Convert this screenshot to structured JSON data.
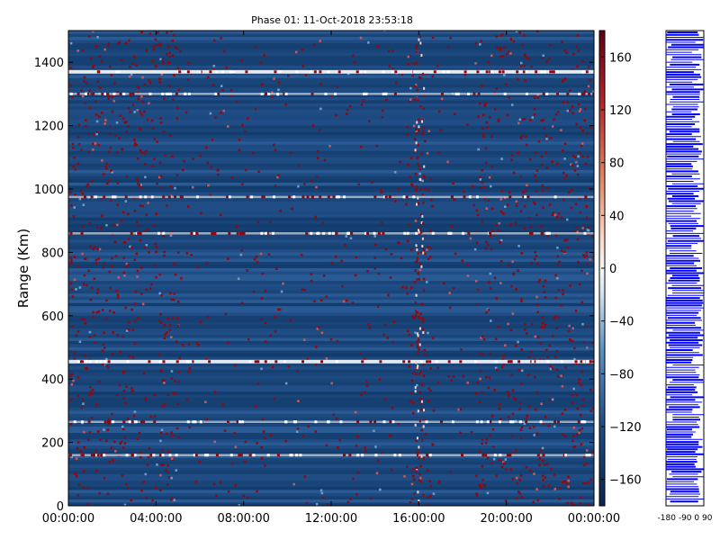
{
  "chart_data": [
    {
      "type": "heatmap",
      "title": "Phase 01: 11-Oct-2018 23:53:18",
      "ylabel": "Range (Km)",
      "xlabel": "",
      "x_ticks": [
        "00:00:00",
        "04:00:00",
        "08:00:00",
        "12:00:00",
        "16:00:00",
        "20:00:00",
        "00:00:00"
      ],
      "x_range_hours": [
        0,
        24
      ],
      "y_ticks": [
        0,
        200,
        400,
        600,
        800,
        1000,
        1200,
        1400
      ],
      "ylim": [
        0,
        1500
      ],
      "colorbar": {
        "ticks": [
          160,
          120,
          80,
          40,
          0,
          -40,
          -80,
          -120,
          -160
        ],
        "range": [
          -180,
          180
        ],
        "colormap": "RdBu_r"
      },
      "white_bands_km": [
        1370,
        1300,
        975,
        860,
        455,
        265,
        160
      ],
      "active_column_hours": [
        15.8,
        16.2
      ],
      "grid": false
    },
    {
      "type": "line",
      "x_ticks_text": "-180 -90 0 90",
      "series_color": "#0000ff"
    }
  ],
  "colors": {
    "field_dark": "#123c6d",
    "field_mid": "#1f4c85",
    "red": "#8b0a12",
    "white": "#ffffff",
    "profile": "#0000ff"
  }
}
